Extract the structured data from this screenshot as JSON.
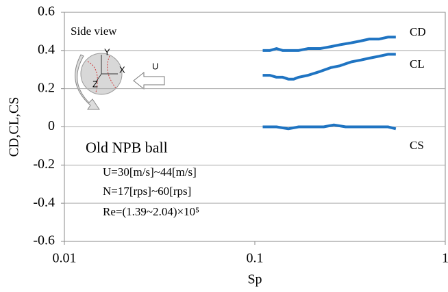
{
  "chart_data": {
    "type": "line",
    "xlabel": "Sp",
    "ylabel": "CD,CL,CS",
    "log_x": true,
    "xlim": [
      0.01,
      1
    ],
    "xticks": [
      0.01,
      0.1,
      1
    ],
    "ylim": [
      -0.6,
      0.6
    ],
    "yticks": [
      -0.6,
      -0.4,
      -0.2,
      0,
      0.2,
      0.4,
      0.6
    ],
    "grid": true,
    "series": [
      {
        "name": "CD",
        "color": "#1f74c2",
        "x": [
          0.11,
          0.12,
          0.13,
          0.14,
          0.15,
          0.17,
          0.19,
          0.22,
          0.25,
          0.28,
          0.32,
          0.36,
          0.4,
          0.45,
          0.5,
          0.55
        ],
        "values": [
          0.4,
          0.4,
          0.41,
          0.4,
          0.4,
          0.4,
          0.41,
          0.41,
          0.42,
          0.43,
          0.44,
          0.45,
          0.46,
          0.46,
          0.47,
          0.47
        ]
      },
      {
        "name": "CL",
        "color": "#1f74c2",
        "x": [
          0.11,
          0.12,
          0.13,
          0.14,
          0.15,
          0.16,
          0.17,
          0.19,
          0.22,
          0.25,
          0.28,
          0.32,
          0.36,
          0.4,
          0.45,
          0.5,
          0.55
        ],
        "values": [
          0.27,
          0.27,
          0.26,
          0.26,
          0.25,
          0.25,
          0.26,
          0.27,
          0.29,
          0.31,
          0.32,
          0.34,
          0.35,
          0.36,
          0.37,
          0.38,
          0.38
        ]
      },
      {
        "name": "CS",
        "color": "#1f74c2",
        "x": [
          0.11,
          0.13,
          0.15,
          0.17,
          0.2,
          0.23,
          0.26,
          0.3,
          0.35,
          0.4,
          0.45,
          0.5,
          0.55
        ],
        "values": [
          0,
          0,
          -0.01,
          0,
          0,
          0,
          0.01,
          0,
          0,
          0,
          0,
          0,
          -0.01
        ]
      }
    ],
    "annotations": [
      "Side view",
      "U",
      "Y",
      "X",
      "Z",
      "Old NPB ball",
      "U=30[m/s]~44[m/s]",
      "N=17[rps]~60[rps]",
      "Re=(1.39~2.04)×10⁵"
    ]
  }
}
